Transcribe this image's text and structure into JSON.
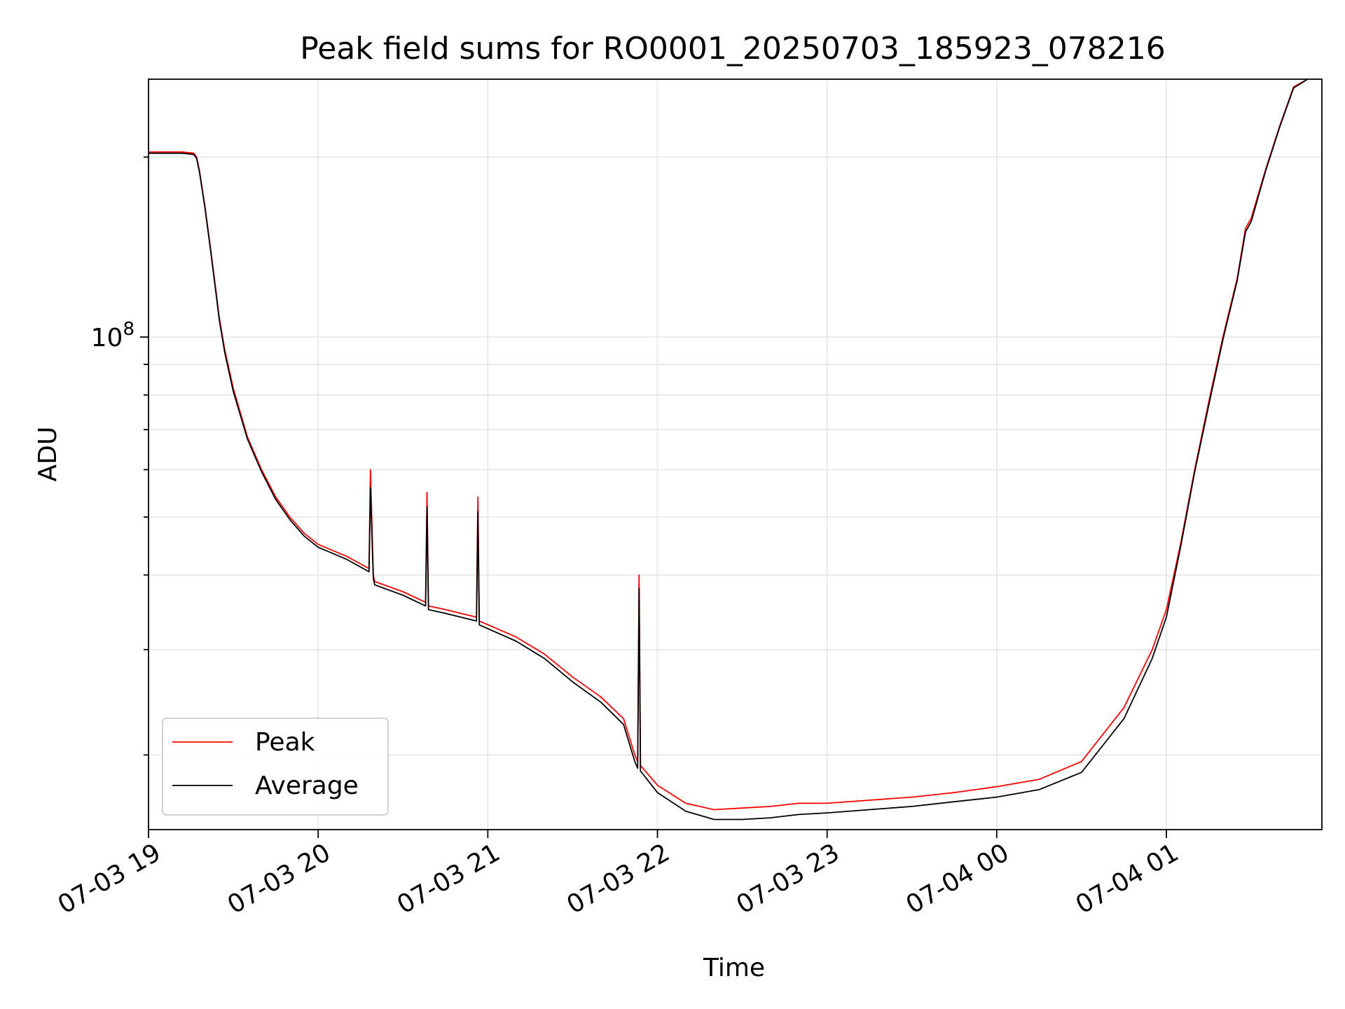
{
  "chart_data": {
    "type": "line",
    "title": "Peak field sums for RO0001_20250703_185923_078216",
    "xlabel": "Time",
    "ylabel": "ADU",
    "yscale": "log",
    "grid": true,
    "legend_position": "lower-left",
    "x_ticks": [
      {
        "value": "2025-07-03T19:00",
        "label": "07-03 19"
      },
      {
        "value": "2025-07-03T20:00",
        "label": "07-03 20"
      },
      {
        "value": "2025-07-03T21:00",
        "label": "07-03 21"
      },
      {
        "value": "2025-07-03T22:00",
        "label": "07-03 22"
      },
      {
        "value": "2025-07-03T23:00",
        "label": "07-03 23"
      },
      {
        "value": "2025-07-04T00:00",
        "label": "07-04 00"
      },
      {
        "value": "2025-07-04T01:00",
        "label": "07-04 01"
      }
    ],
    "y_major_ticks": [
      {
        "value": 100000000,
        "base": "10",
        "exp": "8"
      }
    ],
    "y_minor_ticks": [
      20000000,
      30000000,
      40000000,
      50000000,
      60000000,
      70000000,
      80000000,
      90000000,
      200000000
    ],
    "xlim": [
      "2025-07-03T19:00",
      "2025-07-04T01:55"
    ],
    "ylim": [
      15000000,
      270000000
    ],
    "series": [
      {
        "name": "Peak",
        "color": "#ff0000",
        "x": [
          "2025-07-03T19:00",
          "2025-07-03T19:12",
          "2025-07-03T19:16",
          "2025-07-03T19:17",
          "2025-07-03T19:18",
          "2025-07-03T19:20",
          "2025-07-03T19:22",
          "2025-07-03T19:24",
          "2025-07-03T19:25",
          "2025-07-03T19:27",
          "2025-07-03T19:30",
          "2025-07-03T19:35",
          "2025-07-03T19:40",
          "2025-07-03T19:45",
          "2025-07-03T19:50",
          "2025-07-03T19:55",
          "2025-07-03T20:00",
          "2025-07-03T20:10",
          "2025-07-03T20:18",
          "2025-07-03T20:18.5",
          "2025-07-03T20:19.5",
          "2025-07-03T20:20",
          "2025-07-03T20:30",
          "2025-07-03T20:38",
          "2025-07-03T20:38.5",
          "2025-07-03T20:39",
          "2025-07-03T20:45",
          "2025-07-03T20:56",
          "2025-07-03T20:56.5",
          "2025-07-03T20:57",
          "2025-07-03T21:10",
          "2025-07-03T21:20",
          "2025-07-03T21:30",
          "2025-07-03T21:40",
          "2025-07-03T21:48",
          "2025-07-03T21:52",
          "2025-07-03T21:53",
          "2025-07-03T21:53.5",
          "2025-07-03T21:54",
          "2025-07-03T22:00",
          "2025-07-03T22:10",
          "2025-07-03T22:20",
          "2025-07-03T22:30",
          "2025-07-03T22:40",
          "2025-07-03T22:50",
          "2025-07-03T23:00",
          "2025-07-03T23:15",
          "2025-07-03T23:30",
          "2025-07-03T23:45",
          "2025-07-04T00:00",
          "2025-07-04T00:15",
          "2025-07-04T00:30",
          "2025-07-04T00:45",
          "2025-07-04T00:55",
          "2025-07-04T01:00",
          "2025-07-04T01:05",
          "2025-07-04T01:10",
          "2025-07-04T01:15",
          "2025-07-04T01:20",
          "2025-07-04T01:25",
          "2025-07-04T01:28",
          "2025-07-04T01:30",
          "2025-07-04T01:35",
          "2025-07-04T01:40",
          "2025-07-04T01:45",
          "2025-07-04T01:50"
        ],
        "y": [
          204000000,
          204000000,
          203000000,
          200000000,
          190000000,
          165000000,
          140000000,
          118000000,
          108000000,
          95000000,
          82000000,
          68000000,
          60000000,
          54000000,
          50000000,
          47000000,
          45000000,
          43000000,
          41000000,
          60000000,
          40000000,
          39000000,
          37500000,
          36000000,
          55000000,
          35500000,
          35000000,
          34000000,
          54000000,
          33500000,
          31500000,
          29500000,
          27000000,
          25000000,
          23000000,
          20000000,
          19500000,
          40000000,
          19200000,
          17800000,
          16600000,
          16200000,
          16300000,
          16400000,
          16600000,
          16600000,
          16800000,
          17000000,
          17300000,
          17700000,
          18200000,
          19500000,
          24000000,
          30000000,
          35000000,
          45000000,
          60000000,
          78000000,
          100000000,
          125000000,
          152000000,
          158000000,
          190000000,
          225000000,
          262000000,
          270000000
        ]
      },
      {
        "name": "Average",
        "color": "#000000",
        "x": [
          "2025-07-03T19:00",
          "2025-07-03T19:12",
          "2025-07-03T19:16",
          "2025-07-03T19:17",
          "2025-07-03T19:18",
          "2025-07-03T19:20",
          "2025-07-03T19:22",
          "2025-07-03T19:24",
          "2025-07-03T19:25",
          "2025-07-03T19:27",
          "2025-07-03T19:30",
          "2025-07-03T19:35",
          "2025-07-03T19:40",
          "2025-07-03T19:45",
          "2025-07-03T19:50",
          "2025-07-03T19:55",
          "2025-07-03T20:00",
          "2025-07-03T20:10",
          "2025-07-03T20:18",
          "2025-07-03T20:18.5",
          "2025-07-03T20:19.5",
          "2025-07-03T20:20",
          "2025-07-03T20:30",
          "2025-07-03T20:38",
          "2025-07-03T20:38.5",
          "2025-07-03T20:39",
          "2025-07-03T20:45",
          "2025-07-03T20:56",
          "2025-07-03T20:56.5",
          "2025-07-03T20:57",
          "2025-07-03T21:10",
          "2025-07-03T21:20",
          "2025-07-03T21:30",
          "2025-07-03T21:40",
          "2025-07-03T21:48",
          "2025-07-03T21:52",
          "2025-07-03T21:53",
          "2025-07-03T21:53.5",
          "2025-07-03T21:54",
          "2025-07-03T22:00",
          "2025-07-03T22:10",
          "2025-07-03T22:20",
          "2025-07-03T22:30",
          "2025-07-03T22:40",
          "2025-07-03T22:50",
          "2025-07-03T23:00",
          "2025-07-03T23:15",
          "2025-07-03T23:30",
          "2025-07-03T23:45",
          "2025-07-04T00:00",
          "2025-07-04T00:15",
          "2025-07-04T00:30",
          "2025-07-04T00:45",
          "2025-07-04T00:55",
          "2025-07-04T01:00",
          "2025-07-04T01:05",
          "2025-07-04T01:10",
          "2025-07-04T01:15",
          "2025-07-04T01:20",
          "2025-07-04T01:25",
          "2025-07-04T01:28",
          "2025-07-04T01:30",
          "2025-07-04T01:35",
          "2025-07-04T01:40",
          "2025-07-04T01:45",
          "2025-07-04T01:50"
        ],
        "y": [
          203000000,
          203000000,
          202000000,
          199000000,
          189000000,
          164000000,
          139000000,
          117000000,
          107000000,
          94000000,
          81000000,
          67500000,
          59500000,
          53500000,
          49500000,
          46500000,
          44500000,
          42500000,
          40500000,
          56000000,
          39500000,
          38500000,
          37000000,
          35500000,
          52000000,
          35000000,
          34500000,
          33500000,
          51000000,
          33000000,
          31000000,
          29000000,
          26500000,
          24500000,
          22500000,
          19500000,
          19000000,
          38000000,
          18800000,
          17300000,
          16100000,
          15600000,
          15600000,
          15700000,
          15900000,
          16000000,
          16200000,
          16400000,
          16700000,
          17000000,
          17500000,
          18700000,
          23000000,
          29000000,
          34000000,
          44500000,
          59500000,
          77000000,
          99000000,
          124000000,
          150000000,
          156000000,
          189000000,
          224000000,
          261000000,
          270000000
        ]
      }
    ]
  }
}
